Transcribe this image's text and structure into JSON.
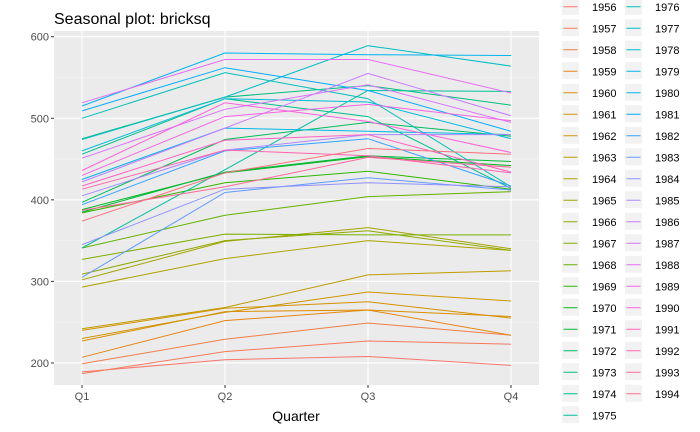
{
  "chart_data": {
    "type": "line",
    "title": "Seasonal plot: bricksq",
    "xlabel": "Quarter",
    "ylabel": "",
    "categories": [
      "Q1",
      "Q2",
      "Q3",
      "Q4"
    ],
    "yticks": [
      200,
      300,
      400,
      500,
      600
    ],
    "ylim": [
      173,
      607
    ],
    "grid": true,
    "legend_position": "right",
    "series": [
      {
        "name": "1956",
        "color": "#F8766D",
        "values": [
          189,
          204,
          208,
          197
        ]
      },
      {
        "name": "1957",
        "color": "#F47A5A",
        "values": [
          187,
          214,
          227,
          223
        ]
      },
      {
        "name": "1958",
        "color": "#EE7F47",
        "values": [
          199,
          229,
          249,
          234
        ]
      },
      {
        "name": "1959",
        "color": "#E68613",
        "values": [
          207,
          252,
          265,
          234
        ]
      },
      {
        "name": "1960",
        "color": "#DB8E00",
        "values": [
          227,
          263,
          265,
          257
        ]
      },
      {
        "name": "1961",
        "color": "#D39200",
        "values": [
          240,
          267,
          275,
          255
        ]
      },
      {
        "name": "1962",
        "color": "#CD9600",
        "values": [
          230,
          262,
          287,
          276
        ]
      },
      {
        "name": "1963",
        "color": "#BE9C00",
        "values": [
          242,
          268,
          308,
          313
        ]
      },
      {
        "name": "1964",
        "color": "#AEA200",
        "values": [
          293,
          328,
          350,
          338
        ]
      },
      {
        "name": "1965",
        "color": "#A3A500",
        "values": [
          302,
          349,
          366,
          340
        ]
      },
      {
        "name": "1966",
        "color": "#8FAA00",
        "values": [
          309,
          350,
          362,
          338
        ]
      },
      {
        "name": "1967",
        "color": "#7CAE00",
        "values": [
          327,
          358,
          357,
          357
        ]
      },
      {
        "name": "1968",
        "color": "#64B200",
        "values": [
          341,
          381,
          404,
          410
        ]
      },
      {
        "name": "1969",
        "color": "#2FB600",
        "values": [
          384,
          421,
          435,
          413
        ]
      },
      {
        "name": "1970",
        "color": "#00B81F",
        "values": [
          388,
          433,
          453,
          442
        ]
      },
      {
        "name": "1971",
        "color": "#00BA38",
        "values": [
          385,
          434,
          454,
          447
        ]
      },
      {
        "name": "1972",
        "color": "#00BD5C",
        "values": [
          397,
          474,
          495,
          478
        ]
      },
      {
        "name": "1973",
        "color": "#00BF7D",
        "values": [
          475,
          526,
          540,
          516
        ]
      },
      {
        "name": "1974",
        "color": "#00C08B",
        "values": [
          456,
          524,
          502,
          414
        ]
      },
      {
        "name": "1975",
        "color": "#00C19A",
        "values": [
          341,
          437,
          534,
          533
        ]
      },
      {
        "name": "1976",
        "color": "#00C0B8",
        "values": [
          500,
          556,
          524,
          416
        ]
      },
      {
        "name": "1977",
        "color": "#00BFC4",
        "values": [
          474,
          526,
          589,
          564
        ]
      },
      {
        "name": "1978",
        "color": "#00BCD8",
        "values": [
          460,
          524,
          520,
          475
        ]
      },
      {
        "name": "1979",
        "color": "#00B8E7",
        "values": [
          425,
          488,
          484,
          480
        ]
      },
      {
        "name": "1980",
        "color": "#00B4F0",
        "values": [
          515,
          580,
          578,
          577
        ]
      },
      {
        "name": "1981",
        "color": "#00ADFA",
        "values": [
          509,
          562,
          534,
          484
        ]
      },
      {
        "name": "1982",
        "color": "#35A2FF",
        "values": [
          394,
          460,
          475,
          417
        ]
      },
      {
        "name": "1983",
        "color": "#619CFF",
        "values": [
          305,
          409,
          427,
          412
        ]
      },
      {
        "name": "1984",
        "color": "#8F91FF",
        "values": [
          345,
          413,
          421,
          416
        ]
      },
      {
        "name": "1985",
        "color": "#AA88FF",
        "values": [
          405,
          461,
          480,
          480
        ]
      },
      {
        "name": "1986",
        "color": "#C77CFF",
        "values": [
          422,
          488,
          555,
          503
        ]
      },
      {
        "name": "1987",
        "color": "#DB72FB",
        "values": [
          451,
          511,
          541,
          495
        ]
      },
      {
        "name": "1988",
        "color": "#E76BF3",
        "values": [
          519,
          572,
          572,
          531
        ]
      },
      {
        "name": "1989",
        "color": "#F564E3",
        "values": [
          430,
          502,
          517,
          497
        ]
      },
      {
        "name": "1990",
        "color": "#FA62DB",
        "values": [
          436,
          519,
          496,
          458
        ]
      },
      {
        "name": "1991",
        "color": "#FF61C3",
        "values": [
          417,
          473,
          480,
          434
        ]
      },
      {
        "name": "1992",
        "color": "#FF64B0",
        "values": [
          413,
          461,
          454,
          433
        ]
      },
      {
        "name": "1993",
        "color": "#FF699C",
        "values": [
          387,
          416,
          452,
          440
        ]
      },
      {
        "name": "1994",
        "color": "#FC717F",
        "values": [
          374,
          433,
          463,
          456
        ]
      }
    ]
  }
}
